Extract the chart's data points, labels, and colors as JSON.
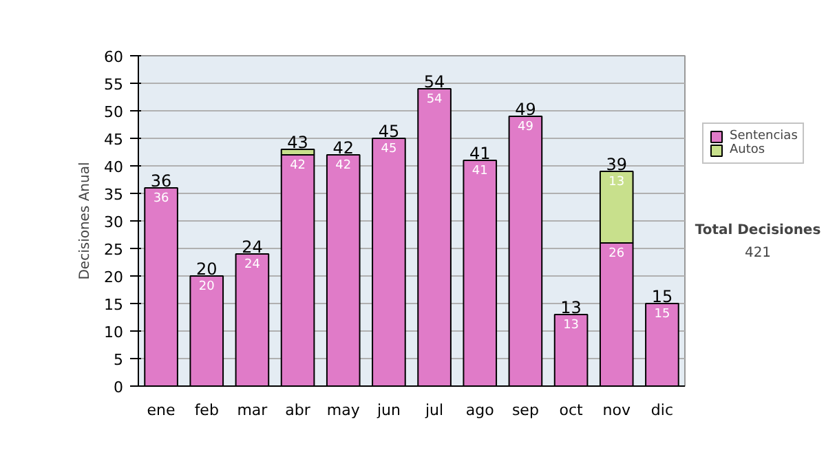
{
  "chart_data": {
    "type": "bar",
    "stacked": true,
    "ylabel": "Decisiones Anual",
    "categories": [
      "ene",
      "feb",
      "mar",
      "abr",
      "may",
      "jun",
      "jul",
      "ago",
      "sep",
      "oct",
      "nov",
      "dic"
    ],
    "series": [
      {
        "name": "Sentencias",
        "color": "#e07bc8",
        "values": [
          36,
          20,
          24,
          42,
          42,
          45,
          54,
          41,
          49,
          13,
          26,
          15
        ],
        "value_labels": [
          "36",
          "20",
          "24",
          "42",
          "42",
          "45",
          "54",
          "41",
          "49",
          "13",
          "26",
          "15"
        ]
      },
      {
        "name": "Autos",
        "color": "#c8e08c",
        "values": [
          null,
          null,
          null,
          1,
          null,
          null,
          null,
          null,
          null,
          null,
          13,
          null
        ],
        "value_labels": [
          null,
          null,
          null,
          null,
          null,
          null,
          null,
          null,
          null,
          null,
          "13",
          null
        ]
      }
    ],
    "totals": [
      "36",
      "20",
      "24",
      "43",
      "42",
      "45",
      "54",
      "41",
      "49",
      "13",
      "39",
      "15"
    ],
    "ylim": [
      0,
      60
    ],
    "yticks": [
      0,
      5,
      10,
      15,
      20,
      25,
      30,
      35,
      40,
      45,
      50,
      55,
      60
    ],
    "grid": "y",
    "legend": "right",
    "annotations": [
      "Total Decisiones",
      "421"
    ]
  }
}
